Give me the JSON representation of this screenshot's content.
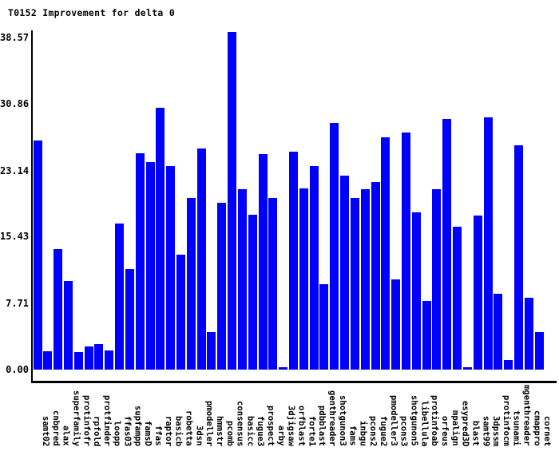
{
  "title": "T0152 Improvement for delta 0",
  "colors": {
    "bar": "#0000ff",
    "axis": "#000000",
    "background": "#ffffff",
    "text": "#000000"
  },
  "chart_data": {
    "type": "bar",
    "title": "T0152 Improvement for delta 0",
    "xlabel": "",
    "ylabel": "",
    "grid": false,
    "legend": null,
    "ylim": [
      0,
      39.3
    ],
    "y_ticks": [
      {
        "value": 0,
        "label": "0.00"
      },
      {
        "value": 7.71,
        "label": "7.71"
      },
      {
        "value": 15.43,
        "label": "15.43"
      },
      {
        "value": 23.14,
        "label": "23.14"
      },
      {
        "value": 30.86,
        "label": "30.86"
      },
      {
        "value": 38.57,
        "label": "38.57"
      }
    ],
    "categories": [
      "samt02",
      "cnbpred",
      "alax",
      "superfamily",
      "protinfofr",
      "rpfold",
      "protfinder",
      "loopp",
      "ffas03",
      "supfampp",
      "famsD",
      "ffas",
      "raptor",
      "basicb",
      "robetta",
      "3dsn",
      "pmodeller",
      "hmmstr",
      "pcomb",
      "consensus",
      "basicc",
      "fugue3",
      "prospect",
      "arby",
      "3djigsaw",
      "orfblast",
      "forte1",
      "pdbblast",
      "genthreader",
      "shotgunon3",
      "fams",
      "inbgu",
      "pcons2",
      "fugue2",
      "pmodeller3",
      "pcons3",
      "shotgunon5",
      "libellula",
      "protinfoab",
      "orfeus",
      "mpalign",
      "esypred3D",
      "blast",
      "samt99",
      "3dpssm",
      "protinfocm",
      "tsunami",
      "mgenthreader",
      "cmappro",
      "cornet"
    ],
    "values": [
      26.7,
      2.1,
      14.0,
      10.3,
      2.0,
      2.7,
      3.0,
      2.2,
      17.0,
      11.7,
      25.2,
      24.2,
      30.5,
      23.7,
      13.4,
      20.0,
      25.7,
      4.4,
      19.4,
      39.3,
      21.0,
      18.0,
      25.1,
      20.0,
      0.3,
      25.4,
      21.1,
      23.7,
      9.9,
      28.7,
      22.6,
      20.0,
      21.0,
      21.8,
      27.0,
      10.5,
      27.6,
      18.3,
      8.0,
      21.0,
      29.2,
      16.6,
      0.3,
      17.9,
      29.4,
      8.8,
      1.1,
      26.1,
      8.4,
      4.4
    ]
  }
}
